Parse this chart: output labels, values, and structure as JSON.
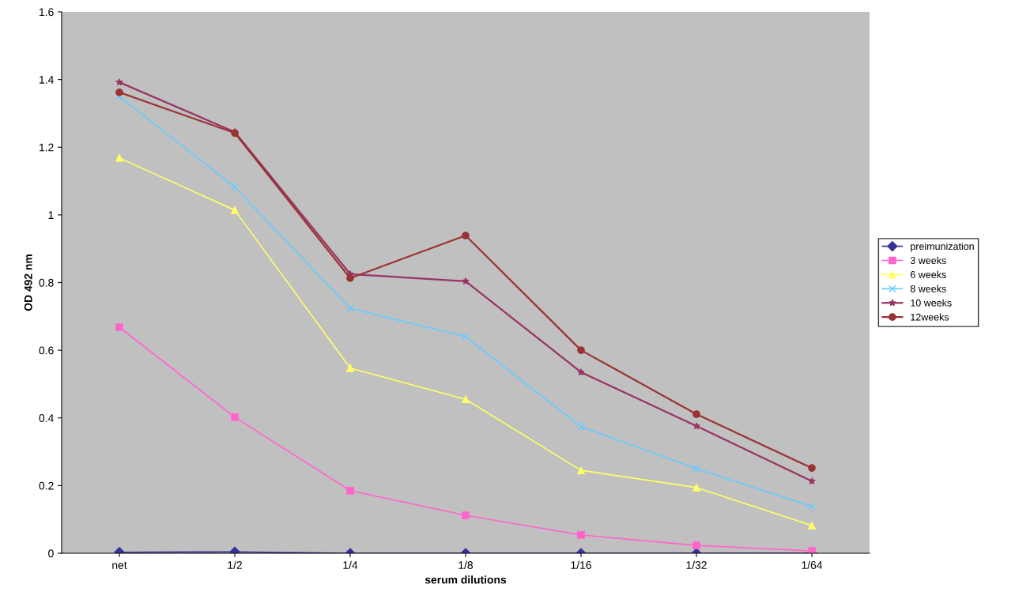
{
  "chart_data": {
    "type": "line",
    "xlabel": "serum dilutions",
    "ylabel": "OD 492 nm",
    "categories": [
      "net",
      "1/2",
      "1/4",
      "1/8",
      "1/16",
      "1/32",
      "1/64"
    ],
    "ylim": [
      0,
      1.6
    ],
    "yticks": [
      0,
      0.2,
      0.4,
      0.6,
      0.8,
      {
        "value": 1,
        "label": "1"
      },
      1.2,
      1.4,
      1.6
    ],
    "grid": false,
    "legend": "right",
    "series": [
      {
        "name": "preimunization",
        "color": "#333399",
        "marker": "diamond",
        "values": [
          0.003,
          0.004,
          0.0,
          0.0,
          0.0,
          0.0,
          0.0
        ]
      },
      {
        "name": "3 weeks",
        "color": "#ff66cc",
        "marker": "square",
        "values": [
          0.668,
          0.402,
          0.185,
          0.112,
          0.054,
          0.023,
          0.007
        ]
      },
      {
        "name": "6 weeks",
        "color": "#ffff66",
        "marker": "triangle",
        "values": [
          1.168,
          1.014,
          0.547,
          0.455,
          0.245,
          0.194,
          0.082
        ]
      },
      {
        "name": "8 weeks",
        "color": "#66ccff",
        "marker": "cross",
        "values": [
          1.35,
          1.082,
          0.724,
          0.64,
          0.374,
          0.25,
          0.138
        ]
      },
      {
        "name": "10 weeks",
        "color": "#993366",
        "marker": "star",
        "values": [
          1.392,
          1.245,
          0.825,
          0.804,
          0.535,
          0.376,
          0.213
        ]
      },
      {
        "name": "12weeks",
        "color": "#993333",
        "marker": "circle",
        "values": [
          1.362,
          1.242,
          0.813,
          0.939,
          0.6,
          0.411,
          0.252
        ]
      }
    ]
  }
}
